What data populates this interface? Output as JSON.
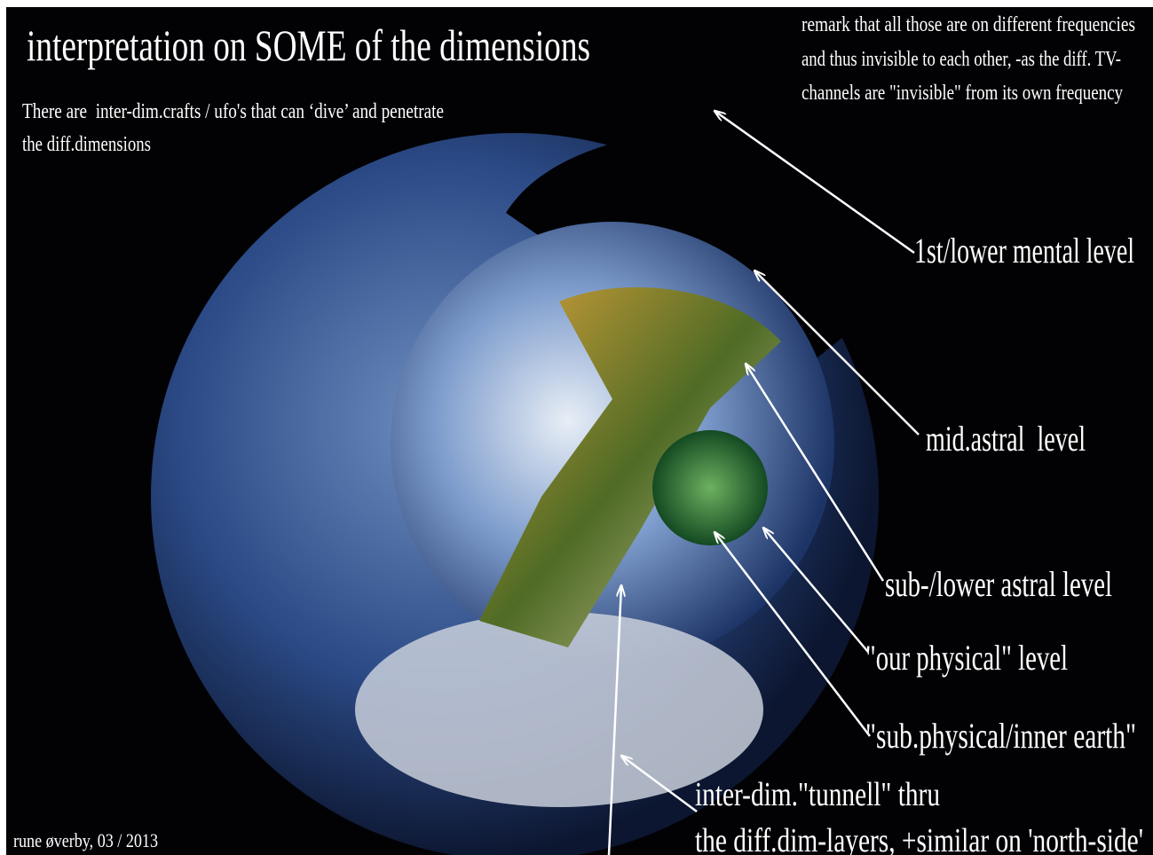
{
  "title": "interpretation on SOME of the dimensions",
  "note": [
    "There are  inter-dim.crafts / ufo's that can ‘dive’ and penetrate",
    "the diff.dimensions"
  ],
  "remark": [
    "remark that all those are on different frequencies",
    "and thus invisible to each other, -as the diff. TV-",
    "channels are \"invisible\" from its own frequency"
  ],
  "labels": [
    "1st/lower mental level",
    "mid.astral  level",
    "sub-/lower astral level",
    "\"our physical\" level",
    "\"sub.physical/inner earth\"",
    "inter-dim.\"tunnell\" thru",
    "the diff.dim-layers, +similar on 'north-side'"
  ],
  "credit": "rune øverby, 03 / 2013"
}
